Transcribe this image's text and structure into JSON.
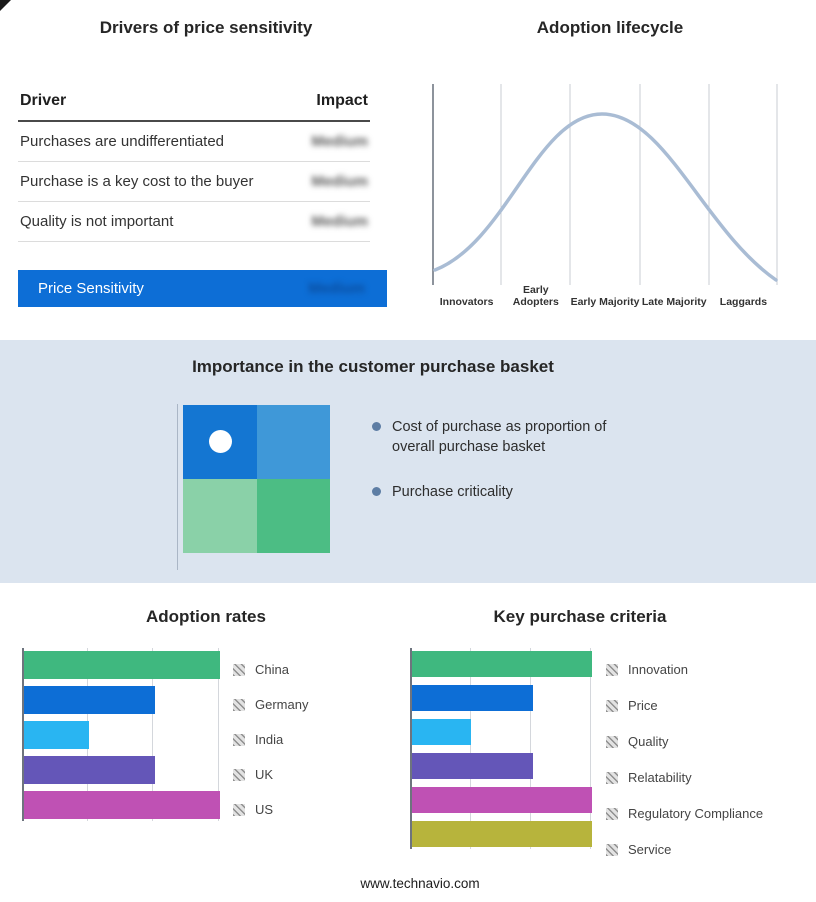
{
  "page": {
    "footer": "www.technavio.com"
  },
  "colors": {
    "highlight_blue": "#0d6ed6",
    "band_bg": "#dbe4ef",
    "curve": "#a9bcd4",
    "quadrant_tl": "#1476d2",
    "quadrant_tr": "#3f98d8",
    "quadrant_bl": "#8ad1a8",
    "quadrant_br": "#4cbd84"
  },
  "drivers_panel": {
    "title": "Drivers of price sensitivity",
    "columns": {
      "driver": "Driver",
      "impact": "Impact"
    },
    "rows": [
      {
        "driver": "Purchases are undifferentiated",
        "impact": "Medium"
      },
      {
        "driver": "Purchase is a key cost to the buyer",
        "impact": "Medium"
      },
      {
        "driver": "Quality is not important",
        "impact": "Medium"
      }
    ],
    "highlight_row": {
      "driver": "Price Sensitivity",
      "impact": "Medium"
    }
  },
  "lifecycle_panel": {
    "title": "Adoption lifecycle",
    "stages": [
      "Innovators",
      "Early Adopters",
      "Early Majority",
      "Late Majority",
      "Laggards"
    ]
  },
  "basket_panel": {
    "title": "Importance in the customer purchase basket",
    "bullets": [
      "Cost of purchase as proportion of overall purchase basket",
      "Purchase criticality"
    ]
  },
  "chart_data": [
    {
      "name": "adoption_lifecycle",
      "type": "line",
      "title": "Adoption lifecycle",
      "shape": "bell-curve",
      "x": [
        "Innovators",
        "Early Adopters",
        "Early Majority",
        "Late Majority",
        "Laggards"
      ],
      "peak_stage": "Early Majority",
      "grid": "vertical dividers between stages",
      "curve_color": "#a9bcd4"
    },
    {
      "name": "adoption_rates",
      "type": "bar",
      "title": "Adoption rates",
      "orientation": "horizontal",
      "categories": [
        "China",
        "Germany",
        "India",
        "UK",
        "US"
      ],
      "values": [
        100,
        67,
        33,
        67,
        100
      ],
      "xlim": [
        0,
        100
      ],
      "grid": "vertical gridlines at 0 / 33 / 66 / 100 (relative scale, no numeric labels shown)",
      "legend_position": "right",
      "colors": [
        "#3fb87f",
        "#0d6ed6",
        "#29b5f2",
        "#6456b8",
        "#bf51b4"
      ]
    },
    {
      "name": "key_purchase_criteria",
      "type": "bar",
      "title": "Key purchase criteria",
      "orientation": "horizontal",
      "categories": [
        "Innovation",
        "Price",
        "Quality",
        "Relatability",
        "Regulatory Compliance",
        "Service"
      ],
      "values": [
        100,
        67,
        33,
        67,
        100,
        100
      ],
      "xlim": [
        0,
        100
      ],
      "grid": "vertical gridlines at 0 / 33 / 66 / 100 (relative scale, no numeric labels shown)",
      "legend_position": "right",
      "colors": [
        "#3fb87f",
        "#0d6ed6",
        "#29b5f2",
        "#6456b8",
        "#bf51b4",
        "#b7b43c"
      ]
    }
  ]
}
